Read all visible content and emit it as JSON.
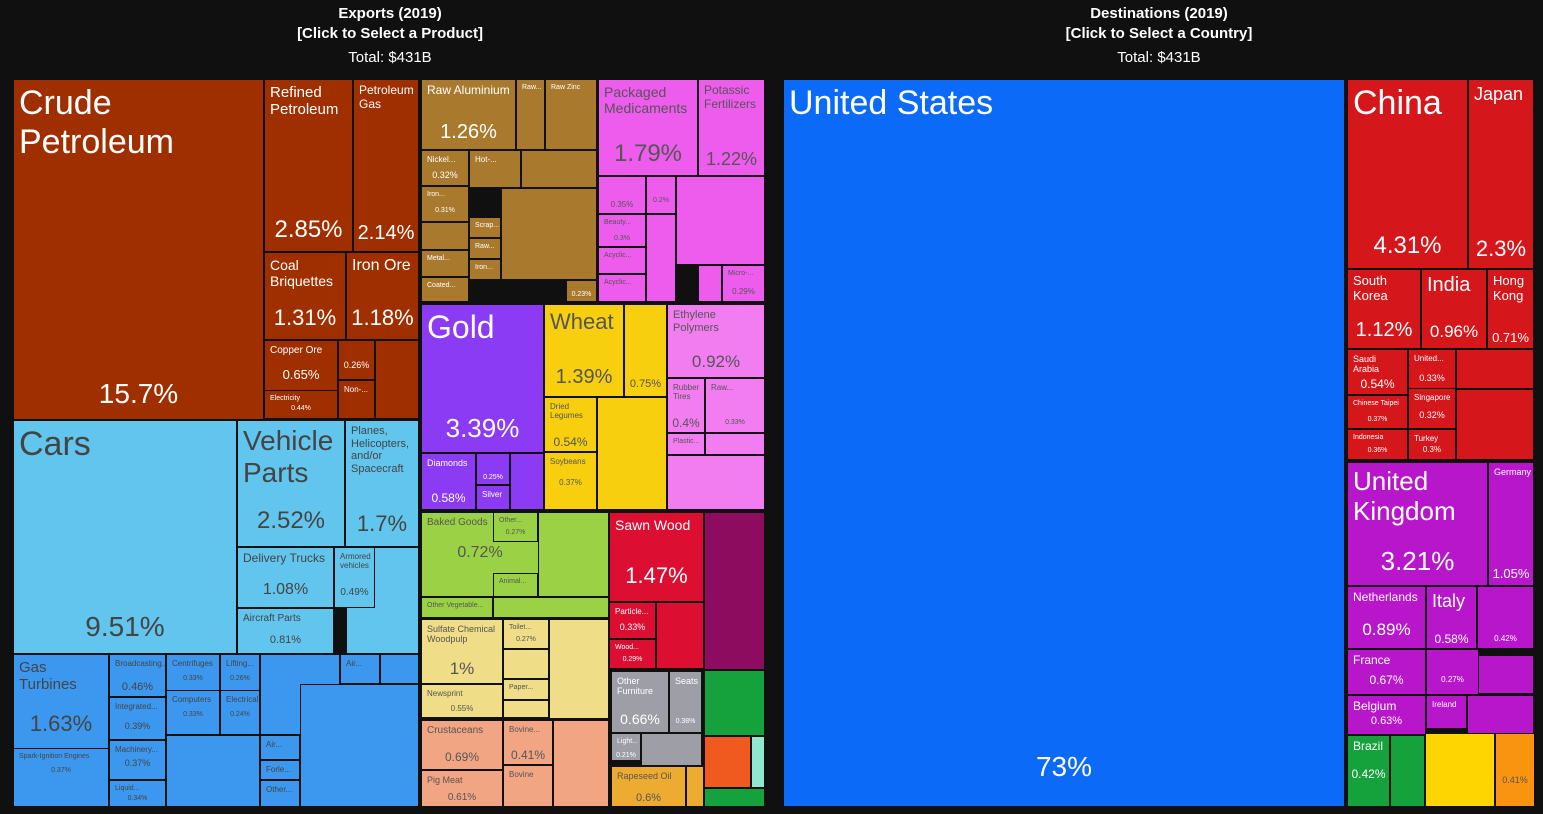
{
  "exports_header": {
    "title": "Exports (2019)",
    "subtitle": "[Click to Select a Product]",
    "total": "Total: $431B"
  },
  "destinations_header": {
    "title": "Destinations (2019)",
    "subtitle": "[Click to Select a Country]",
    "total": "Total: $431B"
  },
  "chart_data": [
    {
      "type": "treemap",
      "title": "Exports (2019)",
      "subtitle": "[Click to Select a Product]",
      "total": "Total: $431B",
      "unit": "% of total exports",
      "items": [
        {
          "label": "Crude Petroleum",
          "display": "15.7%",
          "value": 15.7,
          "color": "#a02f00"
        },
        {
          "label": "Refined Petroleum",
          "display": "2.85%",
          "value": 2.85,
          "color": "#a02f00"
        },
        {
          "label": "Petroleum Gas",
          "display": "2.14%",
          "value": 2.14,
          "color": "#a02f00"
        },
        {
          "label": "Coal Briquettes",
          "display": "1.31%",
          "value": 1.31,
          "color": "#a02f00"
        },
        {
          "label": "Iron Ore",
          "display": "1.18%",
          "value": 1.18,
          "color": "#a02f00"
        },
        {
          "label": "Copper Ore",
          "display": "0.65%",
          "value": 0.65,
          "color": "#a02f00"
        },
        {
          "label": "",
          "display": "0.26%",
          "value": 0.26,
          "color": "#a02f00"
        },
        {
          "label": "Non-...",
          "display": "",
          "value": 0.22,
          "color": "#a02f00"
        },
        {
          "label": "Electricity",
          "display": "0.44%",
          "value": 0.44,
          "color": "#a02f00"
        },
        {
          "label": "Cars",
          "display": "9.51%",
          "value": 9.51,
          "color": "#62c5ed"
        },
        {
          "label": "Vehicle Parts",
          "display": "2.52%",
          "value": 2.52,
          "color": "#62c5ed"
        },
        {
          "label": "Planes, Helicopters, and/or Spacecraft",
          "display": "1.7%",
          "value": 1.7,
          "color": "#62c5ed"
        },
        {
          "label": "Delivery Trucks",
          "display": "1.08%",
          "value": 1.08,
          "color": "#62c5ed"
        },
        {
          "label": "Armored vehicles",
          "display": "0.49%",
          "value": 0.49,
          "color": "#62c5ed"
        },
        {
          "label": "Aircraft Parts",
          "display": "0.81%",
          "value": 0.81,
          "color": "#62c5ed"
        },
        {
          "label": "Gas Turbines",
          "display": "1.63%",
          "value": 1.63,
          "color": "#3c98ef"
        },
        {
          "label": "Spark-Ignition Engines",
          "display": "0.37%",
          "value": 0.37,
          "color": "#3c98ef"
        },
        {
          "label": "Broadcasting...",
          "display": "0.46%",
          "value": 0.46,
          "color": "#3c98ef"
        },
        {
          "label": "Integrated...",
          "display": "0.39%",
          "value": 0.39,
          "color": "#3c98ef"
        },
        {
          "label": "Machinery...",
          "display": "0.37%",
          "value": 0.37,
          "color": "#3c98ef"
        },
        {
          "label": "Liquid...",
          "display": "0.34%",
          "value": 0.34,
          "color": "#3c98ef"
        },
        {
          "label": "Centrifuges",
          "display": "0.33%",
          "value": 0.33,
          "color": "#3c98ef"
        },
        {
          "label": "Computers",
          "display": "0.33%",
          "value": 0.33,
          "color": "#3c98ef"
        },
        {
          "label": "Lifting...",
          "display": "0.26%",
          "value": 0.26,
          "color": "#3c98ef"
        },
        {
          "label": "Electrical...",
          "display": "0.24%",
          "value": 0.24,
          "color": "#3c98ef"
        },
        {
          "label": "Air...",
          "display": "",
          "value": 0.2,
          "color": "#3c98ef"
        },
        {
          "label": "Air...",
          "display": "",
          "value": 0.2,
          "color": "#3c98ef"
        },
        {
          "label": "Forle...",
          "display": "",
          "value": 0.2,
          "color": "#3c98ef"
        },
        {
          "label": "Other...",
          "display": "",
          "value": 0.2,
          "color": "#3c98ef"
        },
        {
          "label": "Raw Aluminium",
          "display": "1.26%",
          "value": 1.26,
          "color": "#a97a2d"
        },
        {
          "label": "Raw...",
          "display": "",
          "value": 0.3,
          "color": "#a97a2d"
        },
        {
          "label": "Raw Zinc",
          "display": "",
          "value": 0.3,
          "color": "#a97a2d"
        },
        {
          "label": "Nickel...",
          "display": "0.32%",
          "value": 0.32,
          "color": "#a97a2d"
        },
        {
          "label": "Iron...",
          "display": "0.31%",
          "value": 0.31,
          "color": "#a97a2d"
        },
        {
          "label": "Metal...",
          "display": "",
          "value": 0.22,
          "color": "#a97a2d"
        },
        {
          "label": "Coated...",
          "display": "",
          "value": 0.22,
          "color": "#a97a2d"
        },
        {
          "label": "Hot-...",
          "display": "",
          "value": 0.25,
          "color": "#a97a2d"
        },
        {
          "label": "Scrap...",
          "display": "",
          "value": 0.2,
          "color": "#a97a2d"
        },
        {
          "label": "Raw...",
          "display": "",
          "value": 0.2,
          "color": "#a97a2d"
        },
        {
          "label": "Iron...",
          "display": "",
          "value": 0.2,
          "color": "#a97a2d"
        },
        {
          "label": "",
          "display": "0.23%",
          "value": 0.23,
          "color": "#a97a2d"
        },
        {
          "label": "Packaged Medicaments",
          "display": "1.79%",
          "value": 1.79,
          "color": "#ee5cee"
        },
        {
          "label": "Potassic Fertilizers",
          "display": "1.22%",
          "value": 1.22,
          "color": "#ee5cee"
        },
        {
          "label": "",
          "display": "0.35%",
          "value": 0.35,
          "color": "#ee5cee"
        },
        {
          "label": "",
          "display": "0.2%",
          "value": 0.2,
          "color": "#ee5cee"
        },
        {
          "label": "Beauty...",
          "display": "0.3%",
          "value": 0.3,
          "color": "#ee5cee"
        },
        {
          "label": "Acyclic...",
          "display": "",
          "value": 0.25,
          "color": "#ee5cee"
        },
        {
          "label": "Acyclic...",
          "display": "",
          "value": 0.25,
          "color": "#ee5cee"
        },
        {
          "label": "Micro-...",
          "display": "0.29%",
          "value": 0.29,
          "color": "#ee5cee"
        },
        {
          "label": "Gold",
          "display": "3.39%",
          "value": 3.39,
          "color": "#8c3bf5"
        },
        {
          "label": "Diamonds",
          "display": "0.58%",
          "value": 0.58,
          "color": "#8c3bf5"
        },
        {
          "label": "",
          "display": "0.25%",
          "value": 0.25,
          "color": "#8c3bf5"
        },
        {
          "label": "Silver",
          "display": "",
          "value": 0.2,
          "color": "#8c3bf5"
        },
        {
          "label": "Wheat",
          "display": "1.39%",
          "value": 1.39,
          "color": "#f7cf0f"
        },
        {
          "label": "",
          "display": "0.75%",
          "value": 0.75,
          "color": "#f7cf0f"
        },
        {
          "label": "Dried Legumes",
          "display": "0.54%",
          "value": 0.54,
          "color": "#f7cf0f"
        },
        {
          "label": "Soybeans",
          "display": "0.37%",
          "value": 0.37,
          "color": "#f7cf0f"
        },
        {
          "label": "Ethylene Polymers",
          "display": "0.92%",
          "value": 0.92,
          "color": "#f27df0"
        },
        {
          "label": "Rubber Tires",
          "display": "0.4%",
          "value": 0.4,
          "color": "#f27df0"
        },
        {
          "label": "Raw...",
          "display": "0.33%",
          "value": 0.33,
          "color": "#f27df0"
        },
        {
          "label": "Plastic...",
          "display": "",
          "value": 0.2,
          "color": "#f27df0"
        },
        {
          "label": "Baked Goods",
          "display": "0.72%",
          "value": 0.72,
          "color": "#9bd245"
        },
        {
          "label": "Other...",
          "display": "0.27%",
          "value": 0.27,
          "color": "#9bd245"
        },
        {
          "label": "Animal...",
          "display": "",
          "value": 0.22,
          "color": "#9bd245"
        },
        {
          "label": "Other Vegetable...",
          "display": "",
          "value": 0.22,
          "color": "#9bd245"
        },
        {
          "label": "Sawn Wood",
          "display": "1.47%",
          "value": 1.47,
          "color": "#dc0f32"
        },
        {
          "label": "Particle...",
          "display": "0.33%",
          "value": 0.33,
          "color": "#dc0f32"
        },
        {
          "label": "Wood...",
          "display": "0.29%",
          "value": 0.29,
          "color": "#dc0f32"
        },
        {
          "label": "Sulfate Chemical Woodpulp",
          "display": "1%",
          "value": 1.0,
          "color": "#f0dd87"
        },
        {
          "label": "Toilet...",
          "display": "0.27%",
          "value": 0.27,
          "color": "#f0dd87"
        },
        {
          "label": "Paper...",
          "display": "",
          "value": 0.22,
          "color": "#f0dd87"
        },
        {
          "label": "Newsprint",
          "display": "0.55%",
          "value": 0.55,
          "color": "#f0dd87"
        },
        {
          "label": "Crustaceans",
          "display": "0.69%",
          "value": 0.69,
          "color": "#f2a583"
        },
        {
          "label": "Bovine...",
          "display": "0.41%",
          "value": 0.41,
          "color": "#f2a583"
        },
        {
          "label": "Pig Meat",
          "display": "0.61%",
          "value": 0.61,
          "color": "#f2a583"
        },
        {
          "label": "Bovine",
          "display": "",
          "value": 0.3,
          "color": "#f2a583"
        },
        {
          "label": "Other Furniture",
          "display": "0.66%",
          "value": 0.66,
          "color": "#9e9ea6"
        },
        {
          "label": "Seats",
          "display": "0.38%",
          "value": 0.38,
          "color": "#9e9ea6"
        },
        {
          "label": "Light...",
          "display": "0.21%",
          "value": 0.21,
          "color": "#9e9ea6"
        },
        {
          "label": "Rapeseed Oil",
          "display": "0.6%",
          "value": 0.6,
          "color": "#eeab32"
        }
      ]
    },
    {
      "type": "treemap",
      "title": "Destinations (2019)",
      "subtitle": "[Click to Select a Country]",
      "total": "Total: $431B",
      "unit": "% of total exports",
      "items": [
        {
          "label": "United States",
          "display": "73%",
          "value": 73,
          "color": "#0c6af8"
        },
        {
          "label": "China",
          "display": "4.31%",
          "value": 4.31,
          "color": "#d5161b"
        },
        {
          "label": "Japan",
          "display": "2.3%",
          "value": 2.3,
          "color": "#d5161b"
        },
        {
          "label": "South Korea",
          "display": "1.12%",
          "value": 1.12,
          "color": "#d5161b"
        },
        {
          "label": "India",
          "display": "0.96%",
          "value": 0.96,
          "color": "#d5161b"
        },
        {
          "label": "Hong Kong",
          "display": "0.71%",
          "value": 0.71,
          "color": "#d5161b"
        },
        {
          "label": "Saudi Arabia",
          "display": "0.54%",
          "value": 0.54,
          "color": "#d5161b"
        },
        {
          "label": "United...",
          "display": "0.33%",
          "value": 0.33,
          "color": "#d5161b"
        },
        {
          "label": "Chinese Taipei",
          "display": "0.37%",
          "value": 0.37,
          "color": "#d5161b"
        },
        {
          "label": "Singapore",
          "display": "0.32%",
          "value": 0.32,
          "color": "#d5161b"
        },
        {
          "label": "Indonesia",
          "display": "0.36%",
          "value": 0.36,
          "color": "#d5161b"
        },
        {
          "label": "Turkey",
          "display": "0.3%",
          "value": 0.3,
          "color": "#d5161b"
        },
        {
          "label": "United Kingdom",
          "display": "3.21%",
          "value": 3.21,
          "color": "#b816ca"
        },
        {
          "label": "Germany",
          "display": "1.05%",
          "value": 1.05,
          "color": "#b816ca"
        },
        {
          "label": "Netherlands",
          "display": "0.89%",
          "value": 0.89,
          "color": "#b816ca"
        },
        {
          "label": "Italy",
          "display": "0.58%",
          "value": 0.58,
          "color": "#b816ca"
        },
        {
          "label": "",
          "display": "0.42%",
          "value": 0.42,
          "color": "#b816ca"
        },
        {
          "label": "France",
          "display": "0.67%",
          "value": 0.67,
          "color": "#b816ca"
        },
        {
          "label": "",
          "display": "0.27%",
          "value": 0.27,
          "color": "#b816ca"
        },
        {
          "label": "Belgium",
          "display": "0.63%",
          "value": 0.63,
          "color": "#b816ca"
        },
        {
          "label": "Ireland",
          "display": "",
          "value": 0.25,
          "color": "#b816ca"
        },
        {
          "label": "Brazil",
          "display": "0.42%",
          "value": 0.42,
          "color": "#15a13b"
        },
        {
          "label": "",
          "display": "0.41%",
          "value": 0.41,
          "color": "#f89410"
        }
      ]
    }
  ]
}
